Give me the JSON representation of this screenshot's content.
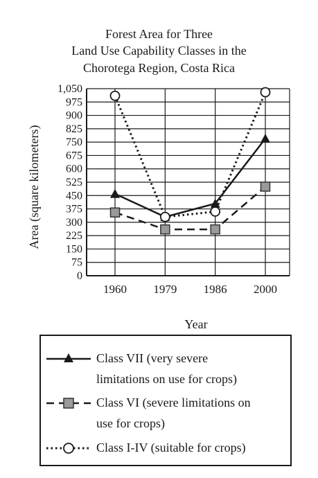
{
  "chart_data": {
    "type": "line",
    "title_lines": [
      "Forest Area for Three",
      "Land Use Capability Classes in the",
      "Chorotega Region, Costa Rica"
    ],
    "xlabel": "Year",
    "ylabel": "Area (square kilometers)",
    "categories": [
      "1960",
      "1979",
      "1986",
      "2000"
    ],
    "ylim": [
      0,
      1050
    ],
    "yticks": [
      0,
      75,
      150,
      225,
      300,
      375,
      450,
      525,
      600,
      675,
      750,
      825,
      900,
      975,
      1050
    ],
    "ytick_labels": [
      "0",
      "75",
      "150",
      "225",
      "300",
      "375",
      "450",
      "525",
      "600",
      "675",
      "750",
      "825",
      "900",
      "975",
      "1,050"
    ],
    "grid": true,
    "legend_position": "bottom",
    "series": [
      {
        "name": "Class VII (very severe limitations on use for crops)",
        "marker": "filled-triangle",
        "line": "solid",
        "values": [
          460,
          330,
          405,
          770
        ]
      },
      {
        "name": "Class VI (severe limitations on use for crops)",
        "marker": "gray-square",
        "line": "dashed",
        "values": [
          355,
          260,
          260,
          500
        ]
      },
      {
        "name": "Class I-IV (suitable for crops)",
        "marker": "open-circle",
        "line": "dotted",
        "values": [
          1010,
          330,
          360,
          1030
        ]
      }
    ]
  },
  "legend": {
    "item1_line1": "Class VII (very severe",
    "item1_line2": "limitations on use for crops)",
    "item2_line1": "Class VI (severe limitations on",
    "item2_line2": "use for crops)",
    "item3_line1": "Class I-IV (suitable for crops)"
  }
}
